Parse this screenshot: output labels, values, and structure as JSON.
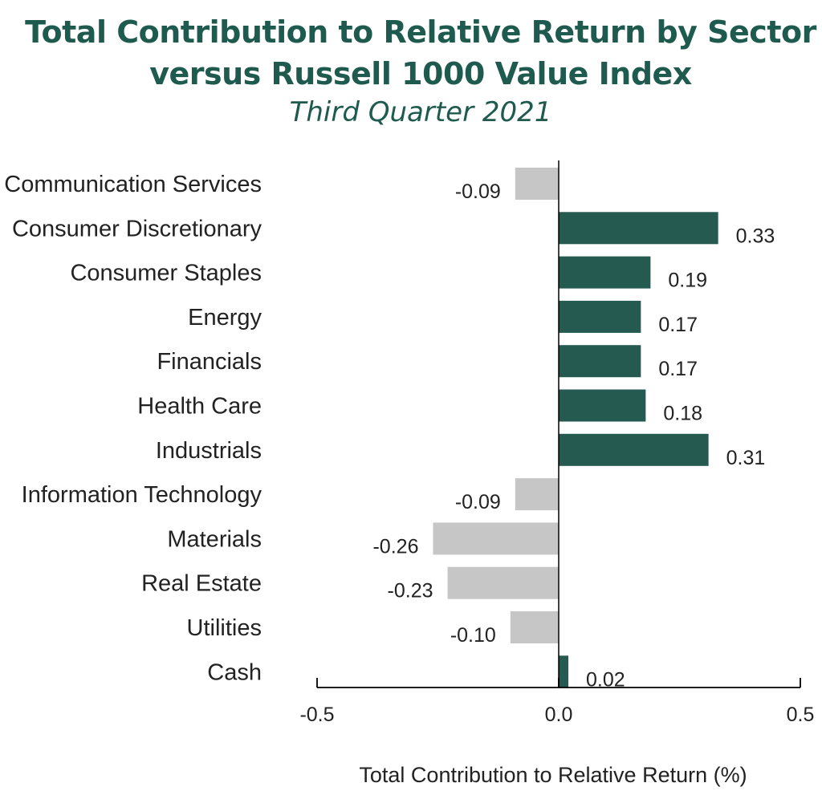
{
  "chart_data": {
    "type": "bar",
    "orientation": "horizontal",
    "title": "Total Contribution to Relative Return by Sector versus Russell 1000 Value Index",
    "subtitle": "Third Quarter 2021",
    "xlabel": "Total Contribution to Relative Return (%)",
    "ylabel": "",
    "categories": [
      "Communication Services",
      "Consumer Discretionary",
      "Consumer Staples",
      "Energy",
      "Financials",
      "Health Care",
      "Industrials",
      "Information Technology",
      "Materials",
      "Real Estate",
      "Utilities",
      "Cash"
    ],
    "values": [
      -0.09,
      0.33,
      0.19,
      0.17,
      0.17,
      0.18,
      0.31,
      -0.09,
      -0.26,
      -0.23,
      -0.1,
      0.02
    ],
    "value_labels": [
      "-0.09",
      "0.33",
      "0.19",
      "0.17",
      "0.17",
      "0.18",
      "0.31",
      "-0.09",
      "-0.26",
      "-0.23",
      "-0.10",
      "0.02"
    ],
    "xlim": [
      -0.5,
      0.5
    ],
    "xticks": [
      -0.5,
      0.0,
      0.5
    ],
    "xtick_labels": [
      "-0.5",
      "0.0",
      "0.5"
    ],
    "grid": false,
    "colors": {
      "positive": "#245a50",
      "negative": "#c6c6c6",
      "title": "#1f5a4f"
    }
  }
}
